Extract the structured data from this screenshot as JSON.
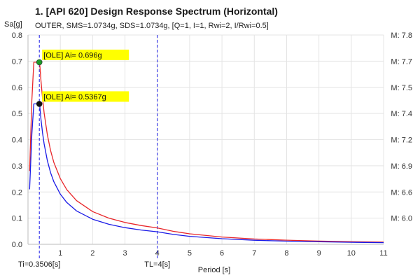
{
  "chart_data": {
    "type": "line",
    "title": "1. [API 620] Design Response Spectrum (Horizontal)",
    "subtitle": "OUTER, SMS=1.0734g, SDS=1.0734g, [Q=1, I=1, Rwi=2, I/Rwi=0.5]",
    "xlabel": "Period [s]",
    "ylabel": "Sa[g]",
    "xlim": [
      0,
      11
    ],
    "ylim": [
      0,
      0.8
    ],
    "x_ticks": [
      1,
      2,
      3,
      4,
      5,
      6,
      7,
      8,
      9,
      10,
      11
    ],
    "y_ticks": [
      0.0,
      0.1,
      0.2,
      0.3,
      0.4,
      0.5,
      0.6,
      0.7,
      0.8
    ],
    "grid": true,
    "series": [
      {
        "color": "#e8262a",
        "x": [
          0.05,
          0.12,
          0.18,
          0.3506,
          0.36,
          0.37,
          0.4,
          0.45,
          0.5,
          0.6,
          0.7,
          0.8,
          1.0,
          1.2,
          1.5,
          2.0,
          2.5,
          3.0,
          3.5,
          4.0,
          4.5,
          5,
          6,
          7,
          8,
          9,
          10,
          11
        ],
        "y": [
          0.28,
          0.55,
          0.696,
          0.696,
          0.696,
          0.677,
          0.626,
          0.557,
          0.501,
          0.418,
          0.358,
          0.313,
          0.251,
          0.209,
          0.167,
          0.125,
          0.1,
          0.0835,
          0.0716,
          0.0626,
          0.0495,
          0.0401,
          0.0278,
          0.0204,
          0.0157,
          0.0124,
          0.01,
          0.0083
        ]
      },
      {
        "color": "#1a1ae6",
        "x": [
          0.05,
          0.12,
          0.18,
          0.3506,
          0.36,
          0.37,
          0.4,
          0.45,
          0.5,
          0.6,
          0.7,
          0.8,
          1.0,
          1.2,
          1.5,
          2.0,
          2.5,
          3.0,
          3.5,
          4.0,
          4.5,
          5,
          6,
          7,
          8,
          9,
          10,
          11
        ],
        "y": [
          0.21,
          0.42,
          0.5367,
          0.5367,
          0.5367,
          0.5198,
          0.4787,
          0.4255,
          0.3829,
          0.3191,
          0.2735,
          0.2393,
          0.1915,
          0.1596,
          0.1276,
          0.0957,
          0.0766,
          0.0638,
          0.0547,
          0.0479,
          0.0378,
          0.0306,
          0.0213,
          0.0156,
          0.012,
          0.0095,
          0.0077,
          0.0063
        ]
      }
    ],
    "markers": [
      {
        "x": 0.3506,
        "y": 0.696,
        "color": "#1e9a2a",
        "label": "[OLE] Ai= 0.696g"
      },
      {
        "x": 0.3506,
        "y": 0.5367,
        "color": "#111111",
        "label": "[OLE] Ai= 0.5367g"
      }
    ],
    "annotation_bg": "#ffff00",
    "vlines": [
      {
        "x": 0.3506,
        "label": "Ti=0.3506[s]",
        "color": "#1a1ae6"
      },
      {
        "x": 4,
        "label": "TL=4[s]",
        "color": "#1a1ae6"
      }
    ],
    "right_axis": {
      "labels": [
        {
          "value": 0.8,
          "text": "M: 7.8"
        },
        {
          "value": 0.7,
          "text": "M: 7.7"
        },
        {
          "value": 0.6,
          "text": "M: 7.5"
        },
        {
          "value": 0.5,
          "text": "M: 7.4"
        },
        {
          "value": 0.4,
          "text": "M: 7.2"
        },
        {
          "value": 0.3,
          "text": "M: 6.9"
        },
        {
          "value": 0.2,
          "text": "M: 6.6"
        },
        {
          "value": 0.1,
          "text": "M: 6.0"
        }
      ]
    }
  }
}
